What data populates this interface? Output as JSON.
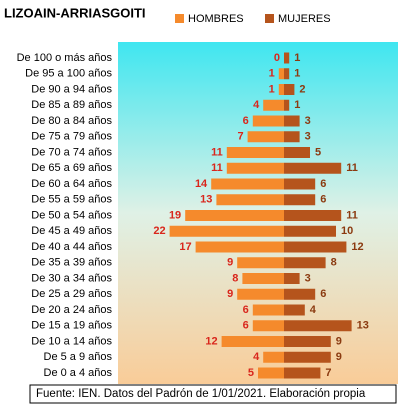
{
  "chart_data": {
    "type": "pyramid",
    "title": "LIZOAIN-ARRIASGOITI",
    "categories": [
      "De 100 o más años",
      "De 95 a 100 años",
      "De 90 a 94 años",
      "De 85 a 89 años",
      "De 80 a 84 años",
      "De 75 a 79 años",
      "De 70 a 74 años",
      "De 65 a 69 años",
      "De 60 a 64 años",
      "De 55 a 59 años",
      "De 50 a 54 años",
      "De 45 a 49 años",
      "De 40 a 44 años",
      "De 35 a 39 años",
      "De 30 a 34 años",
      "De 25 a 29 años",
      "De 20 a 24 años",
      "De 15 a 19 años",
      "De 10 a 14 años",
      "De 5 a 9 años",
      "De 0 a 4 años"
    ],
    "series": [
      {
        "name": "HOMBRES",
        "color": "#f58a2c",
        "label_color": "#d9261c",
        "values": [
          0,
          1,
          1,
          4,
          6,
          7,
          11,
          11,
          14,
          13,
          19,
          22,
          17,
          9,
          8,
          9,
          6,
          6,
          12,
          4,
          5
        ]
      },
      {
        "name": "MUJERES",
        "color": "#b5541c",
        "label_color": "#8b3a10",
        "values": [
          1,
          1,
          2,
          1,
          3,
          3,
          5,
          11,
          6,
          6,
          11,
          10,
          12,
          8,
          3,
          6,
          4,
          13,
          9,
          9,
          7
        ]
      }
    ],
    "source": "Fuente: IEN. Datos del Padrón  de 1/01/2021. Elaboración propia"
  }
}
